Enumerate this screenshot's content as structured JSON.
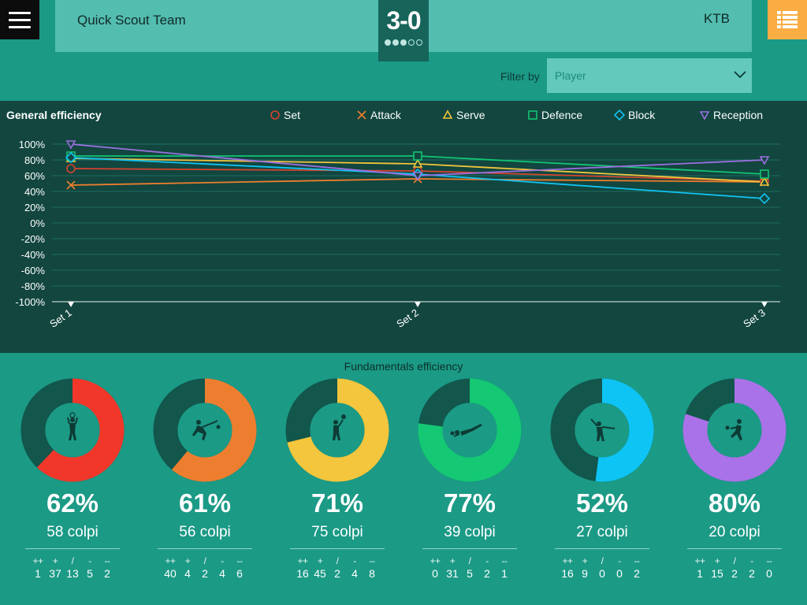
{
  "header": {
    "home_team": "Quick Scout Team",
    "away_team": "KTB",
    "score": "3-0",
    "set_dots": [
      true,
      true,
      true,
      false,
      false
    ]
  },
  "filter": {
    "label": "Filter by",
    "placeholder": "Player"
  },
  "colors": {
    "background": "#1b9a86",
    "chart_panel": "#12463f",
    "set": "#d7442e",
    "attack": "#ef7e2d",
    "serve": "#f2c63c",
    "defence": "#13c472",
    "block": "#10c3f1",
    "reception": "#9b6fe0",
    "menu_btn": "#0c0c0c",
    "list_btn": "#f9ad43"
  },
  "chart_data": {
    "type": "line",
    "title": "General efficiency",
    "categories": [
      "Set 1",
      "Set 2",
      "Set 3"
    ],
    "ylim": [
      -100,
      100
    ],
    "yticks": [
      "100%",
      "80%",
      "60%",
      "40%",
      "20%",
      "0%",
      "-20%",
      "-40%",
      "-60%",
      "-80%",
      "-100%"
    ],
    "ytick_values": [
      100,
      80,
      60,
      40,
      20,
      0,
      -20,
      -40,
      -60,
      -80,
      -100
    ],
    "grid": true,
    "legend_position": "top",
    "series": [
      {
        "name": "Set",
        "marker": "circle",
        "color": "#d7442e",
        "values": [
          69,
          66,
          53
        ]
      },
      {
        "name": "Attack",
        "marker": "x",
        "color": "#ef7e2d",
        "values": [
          48,
          56,
          52
        ]
      },
      {
        "name": "Serve",
        "marker": "triangle",
        "color": "#f2c63c",
        "values": [
          82,
          75,
          52
        ]
      },
      {
        "name": "Defence",
        "marker": "square",
        "color": "#13c472",
        "values": [
          85,
          85,
          62
        ]
      },
      {
        "name": "Block",
        "marker": "diamond",
        "color": "#10c3f1",
        "values": [
          83,
          62,
          31
        ]
      },
      {
        "name": "Reception",
        "marker": "triangle-down",
        "color": "#9b6fe0",
        "values": [
          100,
          60,
          80
        ]
      }
    ]
  },
  "fundamentals": {
    "title": "Fundamentals efficiency",
    "stat_headers": [
      "++",
      "+",
      "/",
      "-",
      "--"
    ],
    "items": [
      {
        "name": "Set",
        "icon": "setter-icon",
        "percent": 62,
        "percent_label": "62%",
        "colpi": "58 colpi",
        "color": "#f0372a",
        "stats": [
          "1",
          "37",
          "13",
          "5",
          "2"
        ]
      },
      {
        "name": "Attack",
        "icon": "attacker-icon",
        "percent": 61,
        "percent_label": "61%",
        "colpi": "56 colpi",
        "color": "#ee7e2f",
        "stats": [
          "40",
          "4",
          "2",
          "4",
          "6"
        ]
      },
      {
        "name": "Serve",
        "icon": "server-icon",
        "percent": 71,
        "percent_label": "71%",
        "colpi": "75 colpi",
        "color": "#f3c63d",
        "stats": [
          "16",
          "45",
          "2",
          "4",
          "8"
        ]
      },
      {
        "name": "Defence",
        "icon": "defender-dive-icon",
        "percent": 77,
        "percent_label": "77%",
        "colpi": "39 colpi",
        "color": "#14c874",
        "stats": [
          "0",
          "31",
          "5",
          "2",
          "1"
        ]
      },
      {
        "name": "Block",
        "icon": "blocker-icon",
        "percent": 52,
        "percent_label": "52%",
        "colpi": "27 colpi",
        "color": "#0ec4f5",
        "stats": [
          "16",
          "9",
          "0",
          "0",
          "2"
        ]
      },
      {
        "name": "Reception",
        "icon": "receiver-icon",
        "percent": 80,
        "percent_label": "80%",
        "colpi": "20 colpi",
        "color": "#a972e8",
        "stats": [
          "1",
          "15",
          "2",
          "2",
          "0"
        ]
      }
    ]
  }
}
